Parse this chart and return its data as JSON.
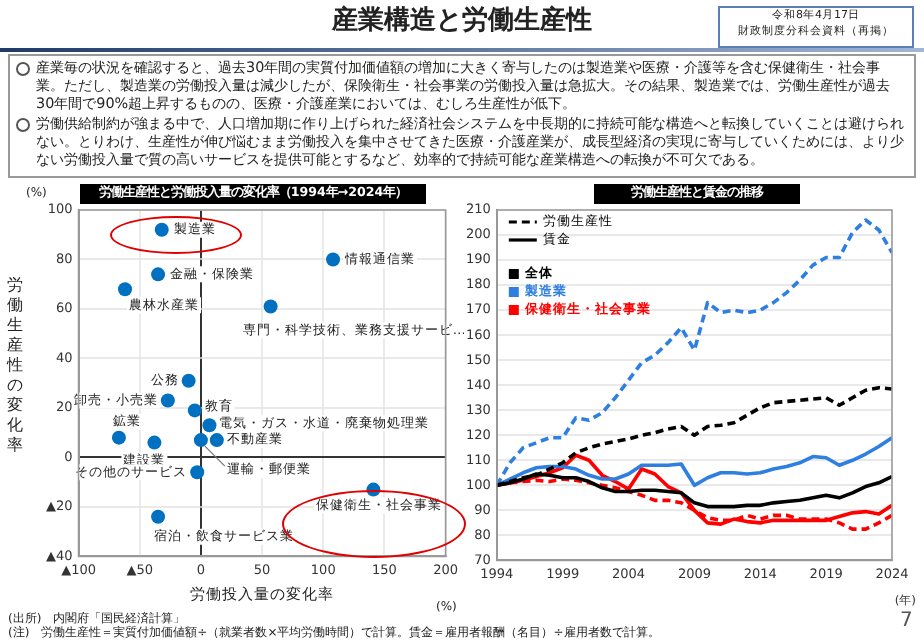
{
  "chart_data": [
    {
      "type": "scatter",
      "title": "労働生産性と労働投入量の変化率（1994年→2024年）",
      "xlabel": "労働投入量の変化率",
      "ylabel": "労働生産性の変化率",
      "annotations": [
        "産業構造と労働生産性",
        "令和8年4月17日",
        "財政制度分科会資料（再掲）",
        "産業毎の状況を確認すると、過去30年間の実質付加価値額の増加に大きく寄与したのは製造業や医療・介護等を含む保健衛生・社会事業。ただし、製造業の労働投入量は減少したが、保険衛生・社会事業の労働投入量は急拡大。その結果、製造業では、労働生産性が過去30年間で90%超上昇するものの、医療・介護産業においては、むしろ生産性が低下。",
        "労働供給制約が強まる中で、人口増加期に作り上げられた経済社会システムを中長期的に持続可能な構造へと転換していくことは避けられない。とりわけ、生産性が伸び悩むまま労働投入を集中させてきた医療・介護産業が、成長型経済の実現に寄与していくためには、より少ない労働投入量で質の高いサービスを提供可能とするなど、効率的で持続可能な産業構造への転換が不可欠である。",
        "(%)",
        "(%)",
        "(出所)　内閣府「国民経済計算」",
        "(注)　労働生産性＝実質付加価値額÷（就業者数×平均労働時間）で計算。賃金＝雇用者報酬（名目）÷雇用者数で計算。",
        "7"
      ],
      "xlim": [
        -100,
        200
      ],
      "xticks": [
        {
          "value": -100,
          "label": "▲100"
        },
        {
          "value": -50,
          "label": "▲50"
        },
        0,
        50,
        100,
        150,
        200
      ],
      "ylim": [
        -40,
        100
      ],
      "yticks": [
        {
          "value": -40,
          "label": "▲40"
        },
        {
          "value": -20,
          "label": "▲20"
        },
        0,
        20,
        40,
        60,
        80,
        100
      ],
      "grid": true,
      "marker": "circle",
      "series": [
        {
          "name": "製造業",
          "color": "#0070c0",
          "x": [
            -32
          ],
          "values": [
            92
          ]
        },
        {
          "name": "情報通信業",
          "color": "#0070c0",
          "x": [
            108
          ],
          "values": [
            80
          ]
        },
        {
          "name": "金融・保険業",
          "color": "#0070c0",
          "x": [
            -35
          ],
          "values": [
            74
          ]
        },
        {
          "name": "農林水産業",
          "color": "#0070c0",
          "x": [
            -62
          ],
          "values": [
            68
          ]
        },
        {
          "name": "専門・科学技術、業務支援サービ…",
          "color": "#0070c0",
          "x": [
            57
          ],
          "values": [
            61
          ]
        },
        {
          "name": "公務",
          "color": "#0070c0",
          "x": [
            -10
          ],
          "values": [
            31
          ]
        },
        {
          "name": "卸売・小売業",
          "color": "#0070c0",
          "x": [
            -27
          ],
          "values": [
            23
          ]
        },
        {
          "name": "教育",
          "color": "#0070c0",
          "x": [
            -5
          ],
          "values": [
            19
          ]
        },
        {
          "name": "電気・ガス・水道・廃棄物処理業",
          "color": "#0070c0",
          "x": [
            7
          ],
          "values": [
            13
          ]
        },
        {
          "name": "鉱業",
          "color": "#0070c0",
          "x": [
            -67
          ],
          "values": [
            8
          ]
        },
        {
          "name": "建設業",
          "color": "#0070c0",
          "x": [
            -38
          ],
          "values": [
            6
          ]
        },
        {
          "name": "不動産業",
          "color": "#0070c0",
          "x": [
            13
          ],
          "values": [
            7
          ]
        },
        {
          "name": "運輸・郵便業",
          "color": "#0070c0",
          "x": [
            0
          ],
          "values": [
            7
          ]
        },
        {
          "name": "その他のサービス",
          "color": "#0070c0",
          "x": [
            -3
          ],
          "values": [
            -6
          ]
        },
        {
          "name": "保健衛生・社会事業",
          "color": "#0070c0",
          "x": [
            141
          ],
          "values": [
            -13
          ]
        },
        {
          "name": "宿泊・飲食サービス業",
          "color": "#0070c0",
          "x": [
            -35
          ],
          "values": [
            -24
          ]
        }
      ]
    },
    {
      "type": "line",
      "title": "労働生産性と賃金の推移",
      "annotations": [
        "労働生産性",
        "賃金",
        "(年)"
      ],
      "x": [
        1994,
        1995,
        1996,
        1997,
        1998,
        1999,
        2000,
        2001,
        2002,
        2003,
        2004,
        2005,
        2006,
        2007,
        2008,
        2009,
        2010,
        2011,
        2012,
        2013,
        2014,
        2015,
        2016,
        2017,
        2018,
        2019,
        2020,
        2021,
        2022,
        2023,
        2024
      ],
      "xlim": [
        1994,
        2024
      ],
      "xticks": [
        1994,
        1999,
        2004,
        2009,
        2014,
        2019,
        2024
      ],
      "ylim": [
        70,
        210
      ],
      "yticks": [
        70,
        80,
        90,
        100,
        110,
        120,
        130,
        140,
        150,
        160,
        170,
        180,
        190,
        200,
        210
      ],
      "grid": "y",
      "legend": "top left",
      "marker": "none",
      "series": [
        {
          "name": "全体",
          "color": "#000000",
          "line_style": "dashed",
          "values": [
            100,
            101.5,
            103,
            104,
            106.5,
            109,
            113,
            115,
            116.5,
            117.5,
            118.5,
            120,
            121,
            122.5,
            123.5,
            120,
            123.5,
            124,
            125,
            128,
            131,
            133,
            133.5,
            134,
            134.5,
            135,
            132,
            135,
            138,
            139,
            138.5
          ]
        },
        {
          "color": "#000000",
          "line_style": "solid",
          "values": [
            100,
            101,
            102.5,
            104.5,
            104,
            103,
            103,
            101.5,
            99,
            97.5,
            97.5,
            98,
            98,
            97.5,
            97,
            93,
            91.5,
            91.5,
            91.5,
            92,
            92,
            93,
            93.5,
            94,
            95,
            96,
            95,
            97,
            99.5,
            101,
            103.5
          ]
        },
        {
          "name": "製造業",
          "color": "#2f7fe0",
          "line_style": "dashed",
          "values": [
            100,
            109,
            115,
            117,
            119,
            119,
            127,
            126,
            129,
            135,
            142,
            149,
            152,
            157,
            163,
            154,
            173,
            169,
            170,
            169,
            170,
            173,
            177,
            182,
            188,
            191,
            191,
            201,
            206,
            202,
            193
          ]
        },
        {
          "color": "#2f7fe0",
          "line_style": "solid",
          "values": [
            100,
            102.5,
            105,
            107,
            107.5,
            107.5,
            106.5,
            104,
            102.5,
            102.5,
            104.5,
            108,
            108,
            108,
            108.5,
            100,
            103,
            105,
            105,
            104.5,
            105,
            106.5,
            107.5,
            109,
            111.5,
            111,
            108,
            110,
            112.5,
            115.5,
            119
          ]
        },
        {
          "name": "保健衛生・社会事業",
          "color": "#ff0000",
          "line_style": "dashed",
          "values": [
            100,
            101,
            101.5,
            102,
            101.5,
            102.5,
            102,
            101,
            100,
            99,
            97.5,
            96,
            94,
            94,
            93,
            90,
            87,
            86,
            86,
            88,
            86.5,
            88,
            88,
            86.5,
            86.5,
            86.5,
            85,
            82.5,
            82.5,
            85,
            88
          ]
        },
        {
          "color": "#ff0000",
          "line_style": "solid",
          "values": [
            100,
            101,
            102,
            103.5,
            105,
            107,
            112,
            110,
            104,
            101.5,
            98.5,
            106.5,
            104.5,
            99.5,
            97,
            90,
            85,
            84.5,
            86.5,
            85.5,
            85,
            86,
            86,
            86,
            86,
            86,
            87.5,
            89,
            89.5,
            88.5,
            92
          ]
        }
      ]
    }
  ]
}
